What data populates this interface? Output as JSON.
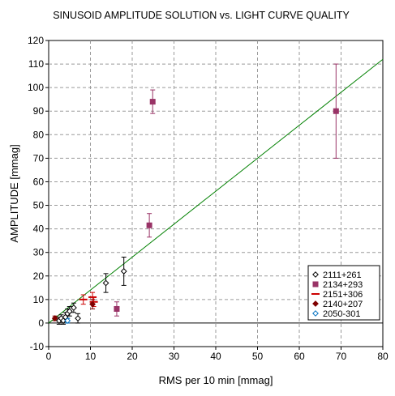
{
  "chart_data": {
    "type": "scatter",
    "title": "SINUSOID AMPLITUDE SOLUTION vs. LIGHT CURVE QUALITY",
    "xlabel": "RMS per 10 min [mmag]",
    "ylabel": "AMPLITUDE [mmag]",
    "xlim": [
      0,
      80
    ],
    "ylim": [
      -10,
      120
    ],
    "xticks": [
      0,
      10,
      20,
      30,
      40,
      50,
      60,
      70,
      80
    ],
    "yticks": [
      -10,
      0,
      10,
      20,
      30,
      40,
      50,
      60,
      70,
      80,
      90,
      100,
      110,
      120
    ],
    "grid": true,
    "legend_position": "bottom-right",
    "trend_line": {
      "x": [
        0,
        80
      ],
      "y": [
        0,
        112
      ],
      "color": "#008000"
    },
    "series": [
      {
        "name": "2111+261",
        "marker": "diamond-open",
        "color": "#000000",
        "points": [
          {
            "x": 2.5,
            "y": 1.0,
            "err": 1.5
          },
          {
            "x": 3.0,
            "y": 2.0,
            "err": 1.5
          },
          {
            "x": 3.5,
            "y": 1.0,
            "err": 1.5
          },
          {
            "x": 4.0,
            "y": 2.5,
            "err": 2.0
          },
          {
            "x": 4.5,
            "y": 4.0,
            "err": 2.0
          },
          {
            "x": 5.0,
            "y": 5.0,
            "err": 2.0
          },
          {
            "x": 6.0,
            "y": 6.5,
            "err": 2.0
          },
          {
            "x": 7.0,
            "y": 2.0,
            "err": 2.0
          },
          {
            "x": 13.7,
            "y": 17.0,
            "err": 4.0
          },
          {
            "x": 18.0,
            "y": 22.0,
            "err": 6.0
          }
        ]
      },
      {
        "name": "2134+293",
        "marker": "square",
        "color": "#993366",
        "points": [
          {
            "x": 16.3,
            "y": 6.0,
            "err": 3.0
          },
          {
            "x": 24.1,
            "y": 41.5,
            "err": 5.0
          },
          {
            "x": 24.9,
            "y": 94.0,
            "err": 5.0
          },
          {
            "x": 68.8,
            "y": 90.0,
            "err": 20.0
          }
        ]
      },
      {
        "name": "2151+306",
        "marker": "dash",
        "color": "#cc0000",
        "points": [
          {
            "x": 8.3,
            "y": 10.0,
            "err": 2.0
          },
          {
            "x": 10.5,
            "y": 11.0,
            "err": 2.0
          },
          {
            "x": 10.8,
            "y": 9.0,
            "err": 2.0
          }
        ]
      },
      {
        "name": "2140+207",
        "marker": "diamond",
        "color": "#800000",
        "points": [
          {
            "x": 1.5,
            "y": 2.0,
            "err": 1.0
          },
          {
            "x": 10.5,
            "y": 8.0,
            "err": 2.0
          }
        ]
      },
      {
        "name": "2050-301",
        "marker": "diamond-open",
        "color": "#0070c0",
        "points": [
          {
            "x": 4.5,
            "y": 1.0,
            "err": 1.0
          }
        ]
      }
    ]
  }
}
